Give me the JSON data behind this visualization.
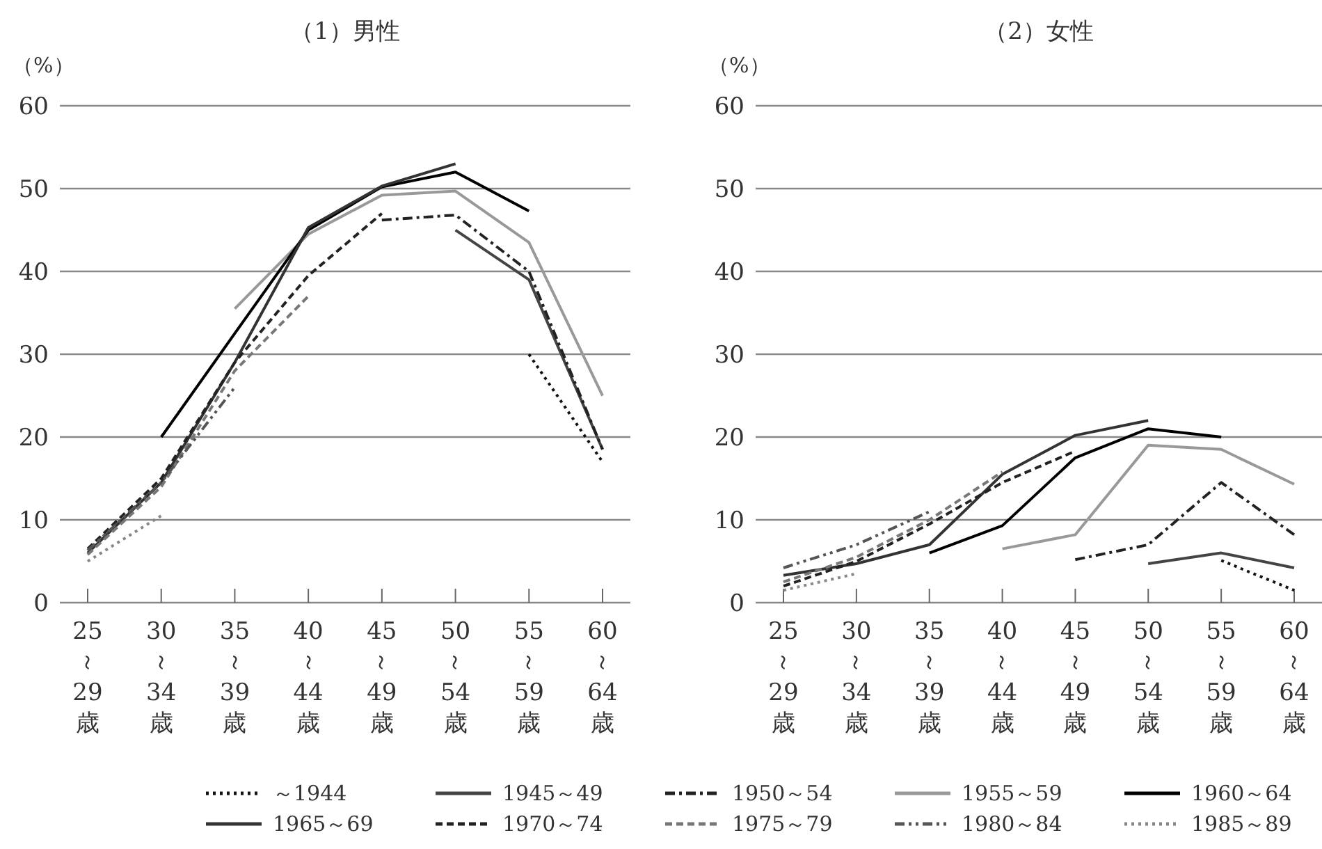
{
  "chart_data": [
    {
      "type": "line",
      "title": "（1）男性",
      "ylabel": "（%）",
      "categories": [
        "25～29歳",
        "30～34歳",
        "35～39歳",
        "40～44歳",
        "45～49歳",
        "50～54歳",
        "55～59歳",
        "60～64歳"
      ],
      "ylim": [
        0,
        60
      ],
      "yticks": [
        0,
        10,
        20,
        30,
        40,
        50,
        60
      ],
      "grid": "y",
      "series": [
        {
          "color": "#111111",
          "line_style": "dotted",
          "values": [
            null,
            null,
            null,
            null,
            null,
            null,
            30,
            17
          ]
        },
        {
          "color": "#444444",
          "line_style": "solid",
          "values": [
            null,
            null,
            null,
            null,
            null,
            45,
            39,
            18.5
          ]
        },
        {
          "color": "#222222",
          "line_style": "dashdot",
          "values": [
            null,
            null,
            null,
            null,
            46.2,
            46.8,
            40,
            18.5
          ]
        },
        {
          "color": "#999999",
          "line_style": "solid",
          "values": [
            null,
            null,
            35.5,
            44.5,
            49.2,
            49.7,
            43.5,
            25
          ]
        },
        {
          "color": "#000000",
          "line_style": "solid",
          "values": [
            null,
            20,
            32.5,
            45,
            50.2,
            52,
            47.3,
            null
          ]
        },
        {
          "color": "#333333",
          "line_style": "solid",
          "values": [
            6,
            14.5,
            29,
            45.3,
            50.3,
            53,
            null,
            null
          ]
        },
        {
          "color": "#222222",
          "line_style": "dashed",
          "values": [
            6.5,
            15,
            29,
            39.5,
            47,
            null,
            null,
            null
          ]
        },
        {
          "color": "#777777",
          "line_style": "dashed",
          "values": [
            5.8,
            14,
            28,
            37,
            null,
            null,
            null,
            null
          ]
        },
        {
          "color": "#555555",
          "line_style": "dashdotdot",
          "values": [
            6.3,
            14.5,
            26,
            null,
            null,
            null,
            null,
            null
          ]
        },
        {
          "color": "#888888",
          "line_style": "dotted",
          "values": [
            5,
            10.5,
            null,
            null,
            null,
            null,
            null,
            null
          ]
        }
      ]
    },
    {
      "type": "line",
      "title": "（2）女性",
      "ylabel": "（%）",
      "categories": [
        "25～29歳",
        "30～34歳",
        "35～39歳",
        "40～44歳",
        "45～49歳",
        "50～54歳",
        "55～59歳",
        "60～64歳"
      ],
      "ylim": [
        0,
        60
      ],
      "yticks": [
        0,
        10,
        20,
        30,
        40,
        50,
        60
      ],
      "grid": "y",
      "legend": "bottom",
      "series": [
        {
          "name": "～1944",
          "color": "#111111",
          "line_style": "dotted",
          "values": [
            null,
            null,
            null,
            null,
            null,
            null,
            5.1,
            1.5
          ]
        },
        {
          "name": "1945～49",
          "color": "#444444",
          "line_style": "solid",
          "values": [
            null,
            null,
            null,
            null,
            null,
            4.7,
            6,
            4.2
          ]
        },
        {
          "name": "1950～54",
          "color": "#222222",
          "line_style": "dashdot",
          "values": [
            null,
            null,
            null,
            null,
            5.2,
            7,
            14.5,
            8.2
          ]
        },
        {
          "name": "1955～59",
          "color": "#999999",
          "line_style": "solid",
          "values": [
            null,
            null,
            null,
            6.5,
            8.2,
            19,
            18.5,
            14.3
          ]
        },
        {
          "name": "1960～64",
          "color": "#000000",
          "line_style": "solid",
          "values": [
            null,
            null,
            6,
            9.3,
            17.5,
            21,
            20,
            null
          ]
        },
        {
          "name": "1965～69",
          "color": "#333333",
          "line_style": "solid",
          "values": [
            3.3,
            4.7,
            7,
            15.5,
            20.2,
            22,
            null,
            null
          ]
        },
        {
          "name": "1970～74",
          "color": "#222222",
          "line_style": "dashed",
          "values": [
            2,
            5,
            9.5,
            14.5,
            18.3,
            null,
            null,
            null
          ]
        },
        {
          "name": "1975～79",
          "color": "#777777",
          "line_style": "dashed",
          "values": [
            2.5,
            5.5,
            10,
            15.8,
            null,
            null,
            null,
            null
          ]
        },
        {
          "name": "1980～84",
          "color": "#555555",
          "line_style": "dashdotdot",
          "values": [
            4.2,
            7,
            11,
            null,
            null,
            null,
            null,
            null
          ]
        },
        {
          "name": "1985～89",
          "color": "#888888",
          "line_style": "dotted",
          "values": [
            1.5,
            3.5,
            null,
            null,
            null,
            null,
            null,
            null
          ]
        }
      ]
    }
  ]
}
